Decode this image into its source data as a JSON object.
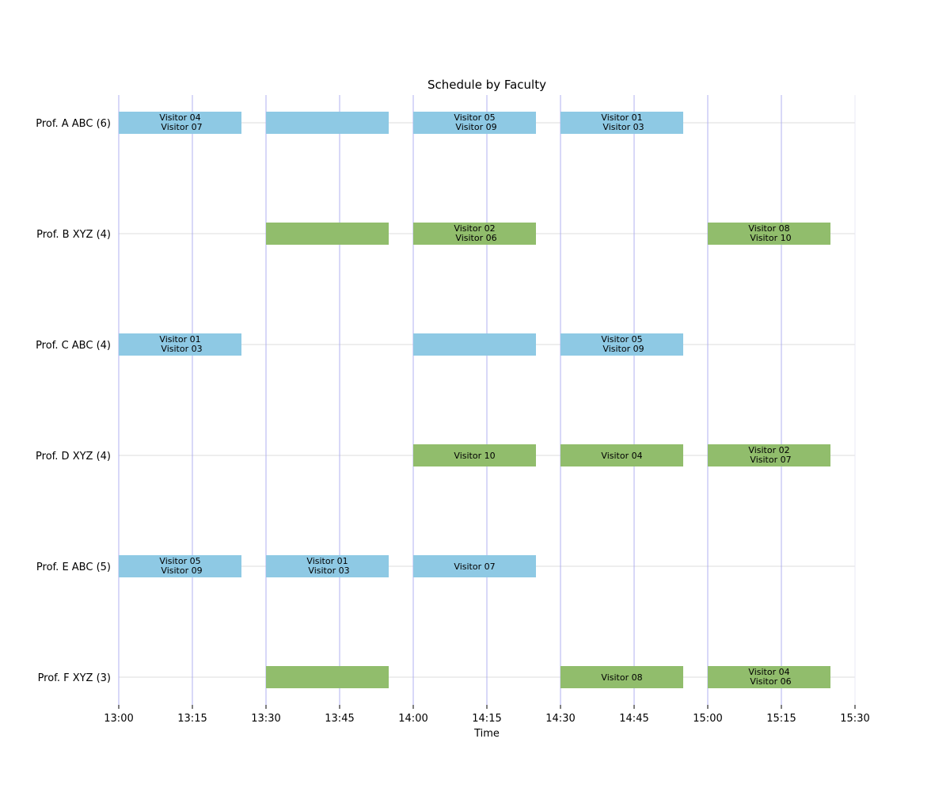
{
  "chart_data": {
    "type": "bar",
    "orientation": "horizontal-timeline",
    "title": "Schedule by Faculty",
    "xlabel": "Time",
    "ylabel": "",
    "x_ticks": [
      "13:00",
      "13:15",
      "13:30",
      "13:45",
      "14:00",
      "14:15",
      "14:30",
      "14:45",
      "15:00",
      "15:15",
      "15:30"
    ],
    "xlim": [
      "13:00",
      "15:30"
    ],
    "grid": true,
    "colors": {
      "ABC": "#8ec9e4",
      "XYZ": "#91bd6c",
      "vertical_grid": "#b0b0f0",
      "horizontal_grid": "#dcdcdc"
    },
    "categories": [
      "Prof. A ABC (6)",
      "Prof. B XYZ (4)",
      "Prof. C ABC (4)",
      "Prof. D XYZ (4)",
      "Prof. E ABC (5)",
      "Prof. F XYZ (3)"
    ],
    "faculty": [
      {
        "label": "Prof. A ABC (6)",
        "group": "ABC",
        "meetings": [
          {
            "start": "13:00",
            "end": "13:25",
            "visitors": [
              "Visitor 04",
              "Visitor 07"
            ]
          },
          {
            "start": "13:30",
            "end": "13:55",
            "visitors": []
          },
          {
            "start": "14:00",
            "end": "14:25",
            "visitors": [
              "Visitor 05",
              "Visitor 09"
            ]
          },
          {
            "start": "14:30",
            "end": "14:55",
            "visitors": [
              "Visitor 01",
              "Visitor 03"
            ]
          }
        ]
      },
      {
        "label": "Prof. B XYZ (4)",
        "group": "XYZ",
        "meetings": [
          {
            "start": "13:30",
            "end": "13:55",
            "visitors": []
          },
          {
            "start": "14:00",
            "end": "14:25",
            "visitors": [
              "Visitor 02",
              "Visitor 06"
            ]
          },
          {
            "start": "15:00",
            "end": "15:25",
            "visitors": [
              "Visitor 08",
              "Visitor 10"
            ]
          }
        ]
      },
      {
        "label": "Prof. C ABC (4)",
        "group": "ABC",
        "meetings": [
          {
            "start": "13:00",
            "end": "13:25",
            "visitors": [
              "Visitor 01",
              "Visitor 03"
            ]
          },
          {
            "start": "14:00",
            "end": "14:25",
            "visitors": []
          },
          {
            "start": "14:30",
            "end": "14:55",
            "visitors": [
              "Visitor 05",
              "Visitor 09"
            ]
          }
        ]
      },
      {
        "label": "Prof. D XYZ (4)",
        "group": "XYZ",
        "meetings": [
          {
            "start": "14:00",
            "end": "14:25",
            "visitors": [
              "Visitor 10"
            ]
          },
          {
            "start": "14:30",
            "end": "14:55",
            "visitors": [
              "Visitor 04"
            ]
          },
          {
            "start": "15:00",
            "end": "15:25",
            "visitors": [
              "Visitor 02",
              "Visitor 07"
            ]
          }
        ]
      },
      {
        "label": "Prof. E ABC (5)",
        "group": "ABC",
        "meetings": [
          {
            "start": "13:00",
            "end": "13:25",
            "visitors": [
              "Visitor 05",
              "Visitor 09"
            ]
          },
          {
            "start": "13:30",
            "end": "13:55",
            "visitors": [
              "Visitor 01",
              "Visitor 03"
            ]
          },
          {
            "start": "14:00",
            "end": "14:25",
            "visitors": [
              "Visitor 07"
            ]
          }
        ]
      },
      {
        "label": "Prof. F XYZ (3)",
        "group": "XYZ",
        "meetings": [
          {
            "start": "13:30",
            "end": "13:55",
            "visitors": []
          },
          {
            "start": "14:30",
            "end": "14:55",
            "visitors": [
              "Visitor 08"
            ]
          },
          {
            "start": "15:00",
            "end": "15:25",
            "visitors": [
              "Visitor 04",
              "Visitor 06"
            ]
          }
        ]
      }
    ]
  }
}
